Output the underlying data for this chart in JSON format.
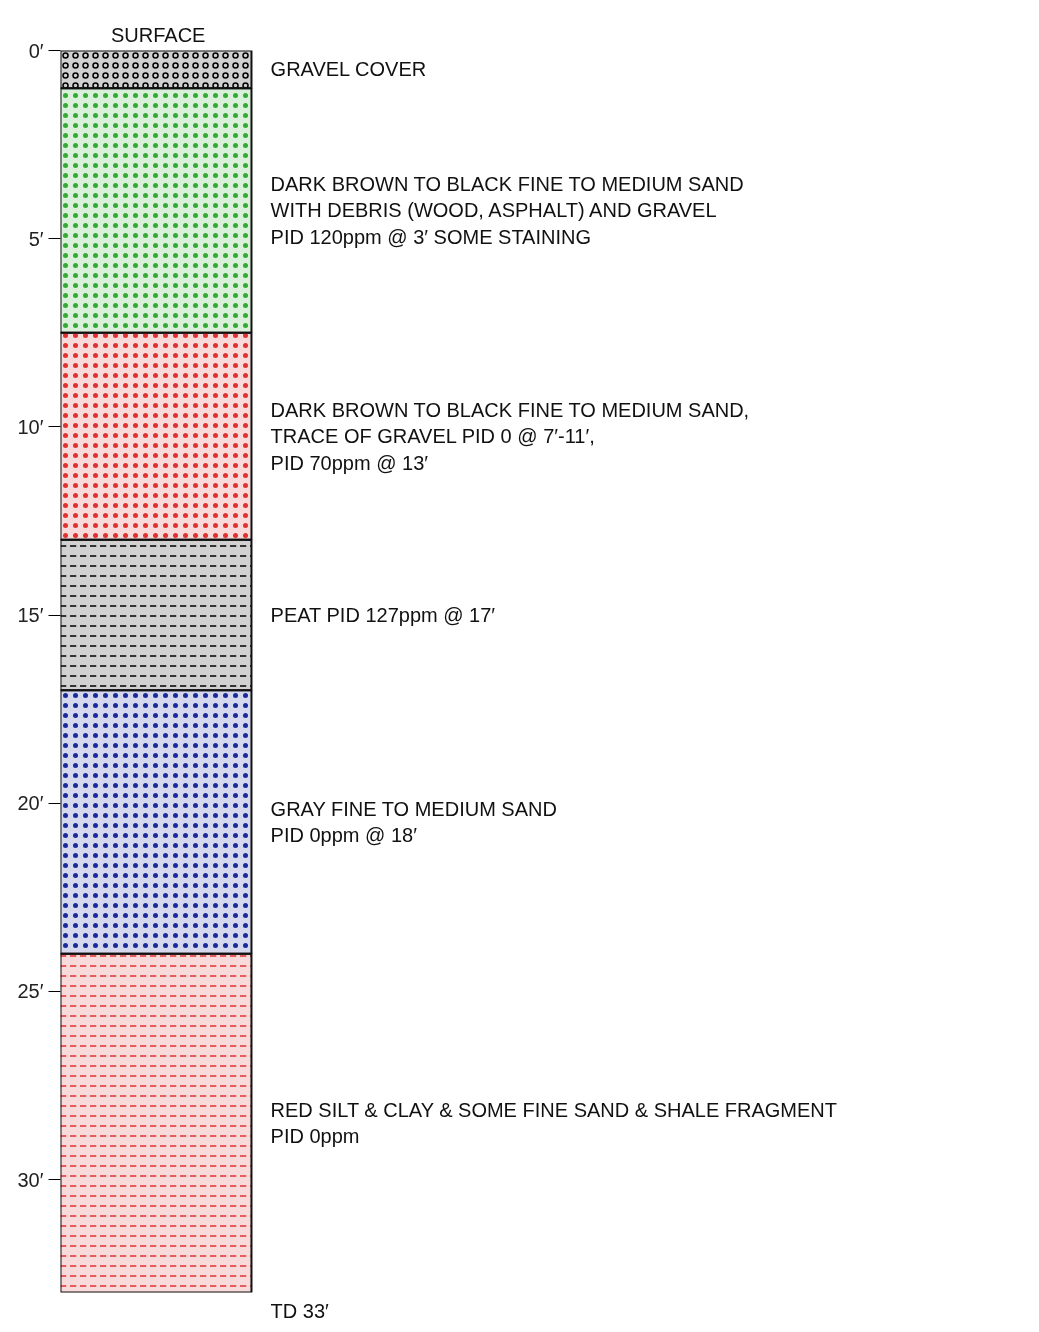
{
  "chart_data": {
    "type": "bar",
    "stacked": true,
    "title": "SURFACE",
    "categories": [
      null
    ],
    "tick_labels": "y",
    "ylim": [
      33,
      0
    ],
    "yticks": [
      {
        "value": 0,
        "label": "0′"
      },
      {
        "value": 5,
        "label": "5′"
      },
      {
        "value": 10,
        "label": "10′"
      },
      {
        "value": 15,
        "label": "15′"
      },
      {
        "value": 20,
        "label": "20′"
      },
      {
        "value": 25,
        "label": "25′"
      },
      {
        "value": 30,
        "label": "30′"
      }
    ],
    "series": [
      {
        "name": "GRAVEL COVER",
        "color": "#000000",
        "values": [
          1
        ]
      },
      {
        "name": "DARK BROWN TO BLACK FINE TO MEDIUM SAND\nWITH DEBRIS (WOOD, ASPHALT) AND GRAVEL\nPID 120ppm @ 3′ SOME STAINING",
        "color": "#33aa33",
        "values": [
          6.5
        ]
      },
      {
        "name": "DARK BROWN TO BLACK FINE TO MEDIUM SAND,\nTRACE OF GRAVEL PID 0 @ 7′-11′,\nPID 70ppm @ 13′",
        "color": "#e03030",
        "values": [
          5.5
        ]
      },
      {
        "name": "PEAT PID 127ppm @ 17′",
        "color": "#000000",
        "values": [
          4
        ]
      },
      {
        "name": "GRAY FINE TO MEDIUM SAND\nPID 0ppm @ 18′",
        "color": "#1a2a9a",
        "values": [
          7
        ]
      },
      {
        "name": "RED SILT & CLAY & SOME FINE SAND & SHALE FRAGMENT\nPID 0ppm",
        "color": "#e03030",
        "values": [
          9
        ]
      }
    ],
    "annotations": [
      "TD 33′"
    ]
  }
}
